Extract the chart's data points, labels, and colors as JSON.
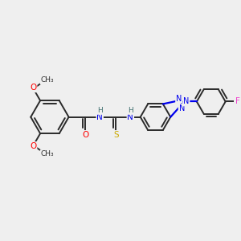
{
  "bg_color": "#efefef",
  "bond_color": "#2a2a2a",
  "bond_width": 1.4,
  "dbo": 0.12,
  "figsize": [
    3.0,
    3.0
  ],
  "dpi": 100,
  "atom_colors": {
    "O": "#ff0000",
    "N": "#0000ee",
    "S": "#ccaa00",
    "F": "#ee44cc",
    "C": "#2a2a2a",
    "H": "#407070"
  },
  "xlim": [
    0,
    10
  ],
  "ylim": [
    0,
    10
  ]
}
